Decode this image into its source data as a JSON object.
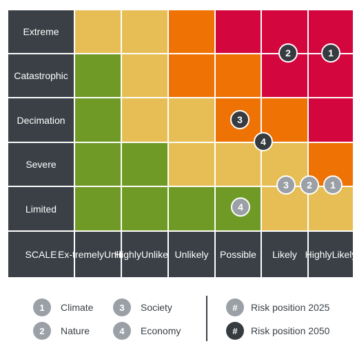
{
  "rows": [
    "Extreme",
    "Catastrophic",
    "Decimation",
    "Severe",
    "Limited"
  ],
  "columns": [
    {
      "lines": [
        "Ex-",
        "tremely",
        "Unlikely"
      ]
    },
    {
      "lines": [
        "Highly",
        "Unlikely"
      ]
    },
    {
      "lines": [
        "Unlikely"
      ]
    },
    {
      "lines": [
        "Possible"
      ]
    },
    {
      "lines": [
        "Likely"
      ]
    },
    {
      "lines": [
        "Highly",
        "Likely"
      ]
    }
  ],
  "scale_label": "SCALE",
  "colors": {
    "label_bg": "#3a4046",
    "green": "#6f9a25",
    "yellow": "#e7be55",
    "orange": "#ee7204",
    "red": "#d4063e",
    "marker_2025": "#9aa0a6",
    "marker_2050": "#363b40"
  },
  "grid": [
    [
      "yellow",
      "yellow",
      "orange",
      "red",
      "red",
      "red"
    ],
    [
      "green",
      "yellow",
      "orange",
      "orange",
      "red",
      "red"
    ],
    [
      "green",
      "yellow",
      "yellow",
      "orange",
      "orange",
      "red"
    ],
    [
      "green",
      "green",
      "yellow",
      "yellow",
      "yellow",
      "orange"
    ],
    [
      "green",
      "green",
      "green",
      "green",
      "yellow",
      "yellow"
    ]
  ],
  "markers_2050": [
    {
      "label": "2",
      "category": "Nature",
      "likelihood": "Likely",
      "impact": "Catastrophic"
    },
    {
      "label": "1",
      "category": "Climate",
      "likelihood": "Highly Likely",
      "impact": "Catastrophic"
    },
    {
      "label": "3",
      "category": "Society",
      "likelihood": "Possible",
      "impact": "Decimation"
    },
    {
      "label": "4",
      "category": "Economy",
      "likelihood": "Possible-Likely",
      "impact": "Decimation-Severe"
    }
  ],
  "markers_2025": [
    {
      "label": "3",
      "category": "Society",
      "likelihood": "Likely",
      "impact": "Severe-Limited"
    },
    {
      "label": "2",
      "category": "Nature",
      "likelihood": "Likely-Highly Likely",
      "impact": "Severe-Limited"
    },
    {
      "label": "1",
      "category": "Climate",
      "likelihood": "Highly Likely",
      "impact": "Severe-Limited"
    },
    {
      "label": "4",
      "category": "Economy",
      "likelihood": "Possible",
      "impact": "Limited"
    }
  ],
  "legend": {
    "categories": [
      {
        "num": "1",
        "name": "Climate"
      },
      {
        "num": "2",
        "name": "Nature"
      },
      {
        "num": "3",
        "name": "Society"
      },
      {
        "num": "4",
        "name": "Economy"
      }
    ],
    "positions": [
      {
        "symbol": "#",
        "name": "Risk position 2025"
      },
      {
        "symbol": "#",
        "name": "Risk position 2050"
      }
    ]
  }
}
